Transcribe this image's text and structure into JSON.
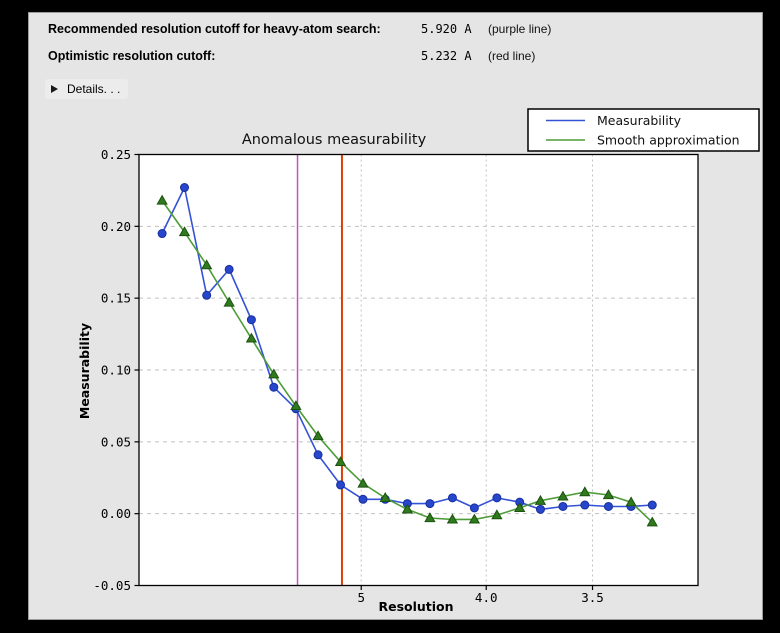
{
  "window": {
    "bg_color": "#e5e5e5",
    "frame_color": "#000000"
  },
  "header": {
    "rows": [
      {
        "label": "Recommended resolution cutoff for heavy-atom search:",
        "value": "5.920 A",
        "note": "(purple line)"
      },
      {
        "label": "Optimistic resolution cutoff:",
        "value": "5.232 A",
        "note": "(red line)"
      }
    ],
    "details": {
      "label": "Details. . ."
    }
  },
  "chart_data": {
    "type": "line",
    "title": "Anomalous measurability",
    "xlabel": "Resolution",
    "ylabel": "Measurability",
    "x_scale": "linear in 1/d^2, resolution in Angstrom decreasing to the right",
    "x_s2_max": 0.10062,
    "x_d_values": [
      15.5,
      11.05,
      9.06,
      7.85,
      7.03,
      6.42,
      5.95,
      5.57,
      5.25,
      4.98,
      4.75,
      4.55,
      4.37,
      4.21,
      4.07,
      3.94,
      3.82,
      3.72,
      3.62,
      3.53,
      3.44,
      3.36,
      3.29
    ],
    "series": [
      {
        "name": "Measurability",
        "color": "#3352d6",
        "marker": "circle",
        "marker_fill": "#2646cc",
        "marker_edge": "#182e9e",
        "values": [
          0.195,
          0.227,
          0.152,
          0.17,
          0.135,
          0.088,
          0.073,
          0.041,
          0.02,
          0.01,
          0.01,
          0.007,
          0.007,
          0.011,
          0.004,
          0.011,
          0.008,
          0.003,
          0.005,
          0.006,
          0.005,
          0.005,
          0.006
        ]
      },
      {
        "name": "Smooth approximation",
        "color": "#4d9c38",
        "marker": "triangle",
        "marker_fill": "#2e7a1c",
        "marker_edge": "#1c5210",
        "values": [
          0.218,
          0.196,
          0.173,
          0.147,
          0.122,
          0.097,
          0.075,
          0.054,
          0.036,
          0.021,
          0.011,
          0.003,
          -0.003,
          -0.004,
          -0.004,
          -0.001,
          0.004,
          0.009,
          0.012,
          0.015,
          0.013,
          0.008,
          -0.006
        ]
      }
    ],
    "x_ticks": [
      {
        "label": "5",
        "d": 5.0
      },
      {
        "label": "4.0",
        "d": 4.0
      },
      {
        "label": "3.5",
        "d": 3.5
      }
    ],
    "y_ticks": [
      {
        "label": "0.25",
        "v": 0.25
      },
      {
        "label": "0.20",
        "v": 0.2
      },
      {
        "label": "0.15",
        "v": 0.15
      },
      {
        "label": "0.10",
        "v": 0.1
      },
      {
        "label": "0.05",
        "v": 0.05
      },
      {
        "label": "0.00",
        "v": 0.0
      },
      {
        "label": "-0.05",
        "v": -0.05
      }
    ],
    "ylim": [
      -0.05,
      0.25
    ],
    "vlines": [
      {
        "name": "recommended-cutoff-line",
        "d": 5.92,
        "color": "#c44fc4",
        "width": 1.5
      },
      {
        "name": "optimistic-cutoff-line",
        "d": 5.232,
        "color": "#e03c05",
        "width": 2
      }
    ],
    "grid": true,
    "grid_color": "#c2c2c2",
    "legend": {
      "position": "top-right",
      "entries": [
        "Measurability",
        "Smooth approximation"
      ]
    }
  }
}
